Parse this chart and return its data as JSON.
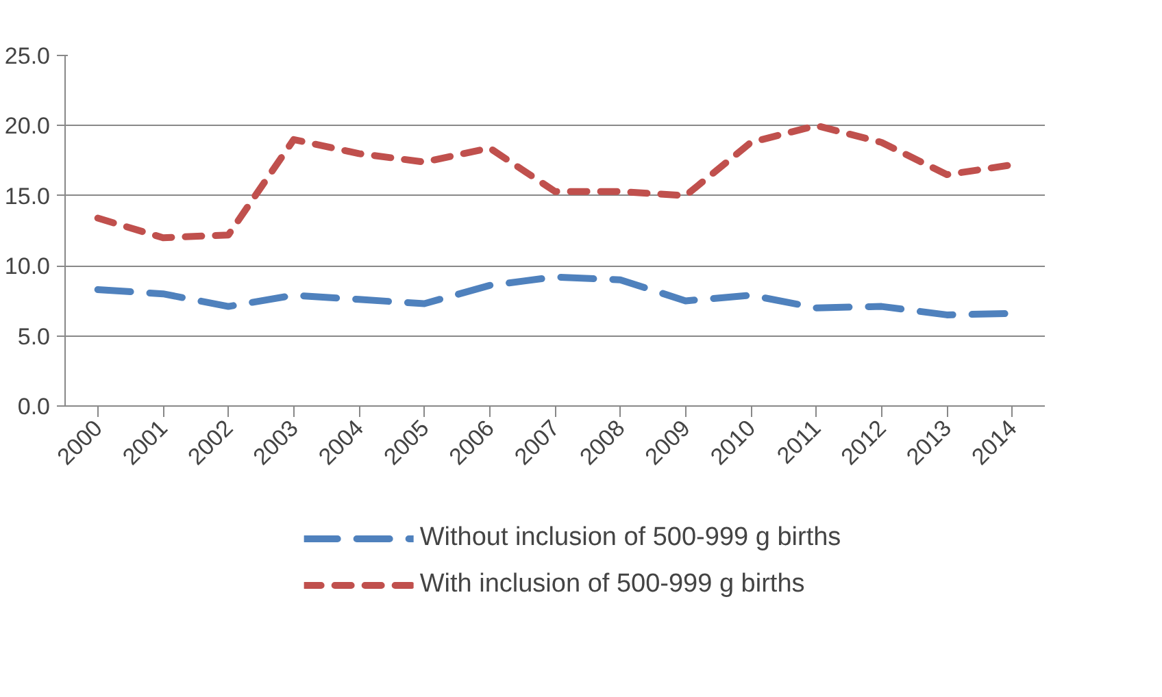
{
  "chart_data": {
    "type": "line",
    "categories": [
      "2000",
      "2001",
      "2002",
      "2003",
      "2004",
      "2005",
      "2006",
      "2007",
      "2008",
      "2009",
      "2010",
      "2011",
      "2012",
      "2013",
      "2014"
    ],
    "series": [
      {
        "name": "Without inclusion of 500-999 g births",
        "color": "#4f81bd",
        "line_style": "dashed",
        "values": [
          8.3,
          8.0,
          7.1,
          7.9,
          7.6,
          7.3,
          8.6,
          9.2,
          9.0,
          7.5,
          7.9,
          7.0,
          7.1,
          6.5,
          6.6
        ]
      },
      {
        "name": "With inclusion of 500-999 g births",
        "color": "#c0504d",
        "line_style": "dotted",
        "values": [
          13.4,
          12.0,
          12.2,
          19.0,
          18.0,
          17.4,
          18.4,
          15.3,
          15.3,
          15.0,
          18.8,
          20.0,
          18.8,
          16.5,
          17.2
        ]
      }
    ],
    "ylim": [
      0,
      25
    ],
    "yticks": [
      {
        "value": 0,
        "label": "0.0"
      },
      {
        "value": 5,
        "label": "5.0"
      },
      {
        "value": 10,
        "label": "10.0"
      },
      {
        "value": 15,
        "label": "15.0"
      },
      {
        "value": 20,
        "label": "20.0"
      },
      {
        "value": 25,
        "label": "25.0"
      }
    ],
    "grid": "y",
    "legend": "bottom"
  }
}
